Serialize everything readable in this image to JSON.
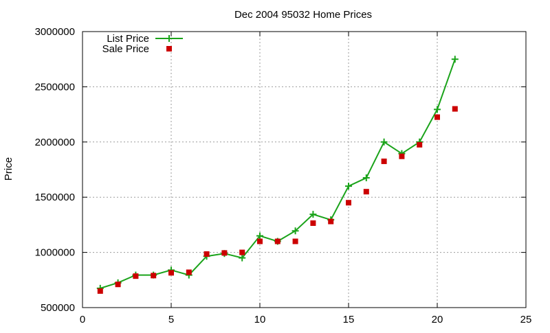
{
  "chart_data": {
    "type": "line",
    "title": "Dec 2004 95032 Home Prices",
    "xlabel": "",
    "ylabel": "Price",
    "xlim": [
      0,
      25
    ],
    "ylim": [
      500000,
      3000000
    ],
    "xticks": [
      0,
      5,
      10,
      15,
      20,
      25
    ],
    "yticks": [
      500000,
      1000000,
      1500000,
      2000000,
      2500000,
      3000000
    ],
    "x_tick_labels": [
      "0",
      "5",
      "10",
      "15",
      "20",
      "25"
    ],
    "y_tick_labels": [
      "500000",
      "1000000",
      "1500000",
      "2000000",
      "2500000",
      "3000000"
    ],
    "grid": true,
    "legend_position": "top-left",
    "series": [
      {
        "name": "List Price",
        "style": "line-with-plus-markers",
        "color": "#1aa31a",
        "x": [
          1,
          2,
          3,
          4,
          5,
          6,
          7,
          8,
          9,
          10,
          11,
          12,
          13,
          14,
          15,
          16,
          17,
          18,
          19,
          20,
          21
        ],
        "values": [
          675000,
          725000,
          795000,
          795000,
          840000,
          795000,
          965000,
          990000,
          950000,
          1150000,
          1100000,
          1195000,
          1345000,
          1295000,
          1600000,
          1675000,
          2000000,
          1895000,
          2000000,
          2295000,
          2750000
        ]
      },
      {
        "name": "Sale Price",
        "style": "square-markers",
        "color": "#cc0000",
        "x": [
          1,
          2,
          3,
          4,
          5,
          6,
          7,
          8,
          9,
          10,
          11,
          12,
          13,
          14,
          15,
          16,
          17,
          18,
          19,
          20,
          21
        ],
        "values": [
          650000,
          710000,
          785000,
          790000,
          815000,
          820000,
          985000,
          995000,
          1000000,
          1100000,
          1100000,
          1100000,
          1265000,
          1280000,
          1450000,
          1550000,
          1825000,
          1870000,
          1975000,
          2225000,
          2300000
        ]
      }
    ]
  }
}
